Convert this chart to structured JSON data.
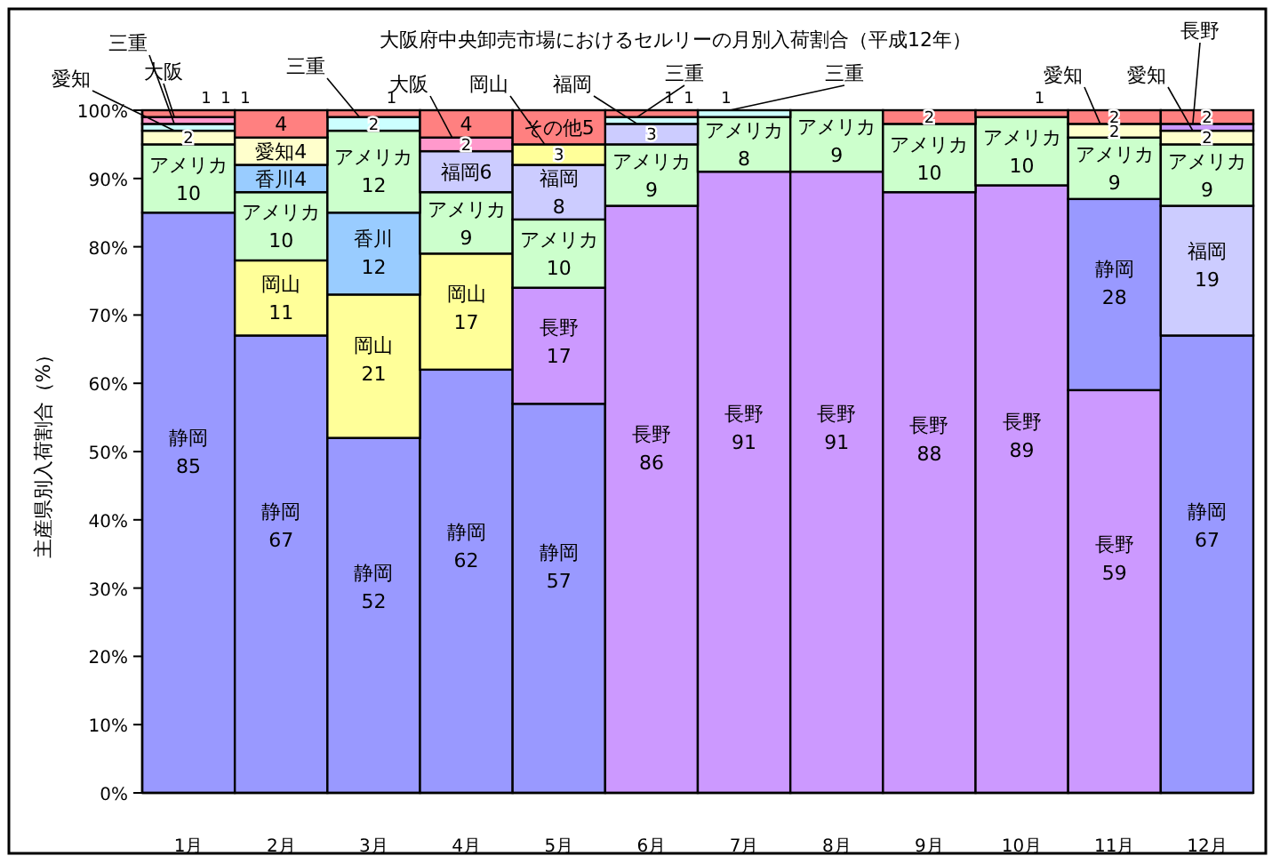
{
  "chart_data": {
    "type": "bar",
    "stacked": true,
    "title": "大阪府中央卸売市場におけるセルリーの月別入荷割合（平成12年）",
    "ylabel": "主産県別入荷割合（%）",
    "categories": [
      "1月",
      "2月",
      "3月",
      "4月",
      "5月",
      "6月",
      "7月",
      "8月",
      "9月",
      "10月",
      "11月",
      "12月"
    ],
    "ylim": [
      0,
      100
    ],
    "yticks": [
      {
        "value": 0,
        "label": "0%"
      },
      {
        "value": 10,
        "label": "10%"
      },
      {
        "value": 20,
        "label": "20%"
      },
      {
        "value": 30,
        "label": "30%"
      },
      {
        "value": 40,
        "label": "40%"
      },
      {
        "value": 50,
        "label": "50%"
      },
      {
        "value": 60,
        "label": "60%"
      },
      {
        "value": 70,
        "label": "70%"
      },
      {
        "value": 80,
        "label": "80%"
      },
      {
        "value": 90,
        "label": "90%"
      },
      {
        "value": 100,
        "label": "100%"
      }
    ],
    "series": [
      {
        "values": [
          85,
          67,
          52,
          62,
          57,
          86,
          91,
          91,
          88,
          89,
          59,
          67
        ],
        "colors": [
          "#9999ff",
          "#9999ff",
          "#9999ff",
          "#9999ff",
          "#9999ff",
          "#cc99ff",
          "#cc99ff",
          "#cc99ff",
          "#cc99ff",
          "#cc99ff",
          "#cc99ff",
          "#9999ff"
        ],
        "value_labels": [
          "静岡 85",
          "静岡 67",
          "静岡 52",
          "静岡 62",
          "静岡 57",
          "長野 86",
          "長野 91",
          "長野 91",
          "長野 88",
          "長野 89",
          "長野 59",
          "静岡 67"
        ]
      },
      {
        "values": [
          10,
          11,
          21,
          17,
          17,
          9,
          8,
          9,
          10,
          10,
          28,
          19
        ],
        "colors": [
          "#ccffcc",
          "#ffff99",
          "#ffff99",
          "#ffff99",
          "#cc99ff",
          "#ccffcc",
          "#ccffcc",
          "#ccffcc",
          "#ccffcc",
          "#ccffcc",
          "#9999ff",
          "#ccccff"
        ],
        "value_labels": [
          "アメリカ 10",
          "岡山 11",
          "岡山 21",
          "岡山 17",
          "長野 17",
          "アメリカ 9",
          "アメリカ 8",
          "アメリカ 9",
          "アメリカ 10",
          "アメリカ 10",
          "静岡 28",
          "福岡 19"
        ]
      },
      {
        "values": [
          2,
          10,
          12,
          9,
          10,
          3,
          1,
          null,
          2,
          1,
          9,
          9
        ],
        "colors": [
          "#ffffcc",
          "#ccffcc",
          "#99ccff",
          "#ccffcc",
          "#ccffcc",
          "#ccccff",
          "#ccffff",
          null,
          "#ff8080",
          "#ff8080",
          "#ccffcc",
          "#ccffcc"
        ],
        "value_labels": [
          "2",
          "アメリカ 10",
          "香川 12",
          "アメリカ 9",
          "アメリカ 10",
          "3",
          "1",
          null,
          "2",
          "1",
          "アメリカ 9",
          "アメリカ 9"
        ]
      },
      {
        "values": [
          1,
          4,
          12,
          6,
          8,
          1,
          null,
          null,
          null,
          null,
          2,
          2
        ],
        "colors": [
          "#ccffff",
          "#99ccff",
          "#ccffcc",
          "#ccccff",
          "#ccccff",
          "#ccffff",
          null,
          null,
          null,
          null,
          "#ffffcc",
          "#ffffcc"
        ],
        "value_labels": [
          "1",
          "香川4",
          "アメリカ 12",
          "福岡6",
          "福岡 8",
          "1",
          null,
          null,
          null,
          null,
          "2",
          "2"
        ]
      },
      {
        "values": [
          1,
          4,
          2,
          2,
          3,
          1,
          null,
          null,
          null,
          null,
          2,
          1
        ],
        "colors": [
          "#ff99cc",
          "#ffffcc",
          "#ccffff",
          "#ff99cc",
          "#ffff99",
          "#ff8080",
          null,
          null,
          null,
          null,
          "#ff8080",
          "#cc99ff"
        ],
        "value_labels": [
          "1",
          "愛知4",
          "2",
          "2",
          "3",
          "1",
          null,
          null,
          null,
          null,
          "2",
          null
        ]
      },
      {
        "values": [
          1,
          4,
          1,
          4,
          5,
          null,
          null,
          null,
          null,
          null,
          null,
          2
        ],
        "colors": [
          "#ff8080",
          "#ff8080",
          "#ff8080",
          "#ff8080",
          "#ff8080",
          null,
          null,
          null,
          null,
          null,
          null,
          "#ff8080"
        ],
        "value_labels": [
          "1",
          "4",
          "1",
          "4",
          "その他5",
          null,
          null,
          null,
          null,
          null,
          null,
          "2"
        ]
      }
    ],
    "annotations": [
      {
        "text": "愛知",
        "x": "1月",
        "y": 97
      },
      {
        "text": "三重",
        "x": "1月",
        "y": 98
      },
      {
        "text": "大阪",
        "x": "1月",
        "y": 99
      },
      {
        "text": "三重",
        "x": "3月",
        "y": 99
      },
      {
        "text": "大阪",
        "x": "4月",
        "y": 96
      },
      {
        "text": "岡山",
        "x": "5月",
        "y": 95
      },
      {
        "text": "福岡",
        "x": "6月",
        "y": 98
      },
      {
        "text": "三重",
        "x": "6月",
        "y": 99
      },
      {
        "text": "三重",
        "x": "7月",
        "y": 100
      },
      {
        "text": "愛知",
        "x": "11月",
        "y": 98
      },
      {
        "text": "愛知",
        "x": "12月",
        "y": 97
      },
      {
        "text": "長野",
        "x": "12月",
        "y": 98
      }
    ]
  }
}
